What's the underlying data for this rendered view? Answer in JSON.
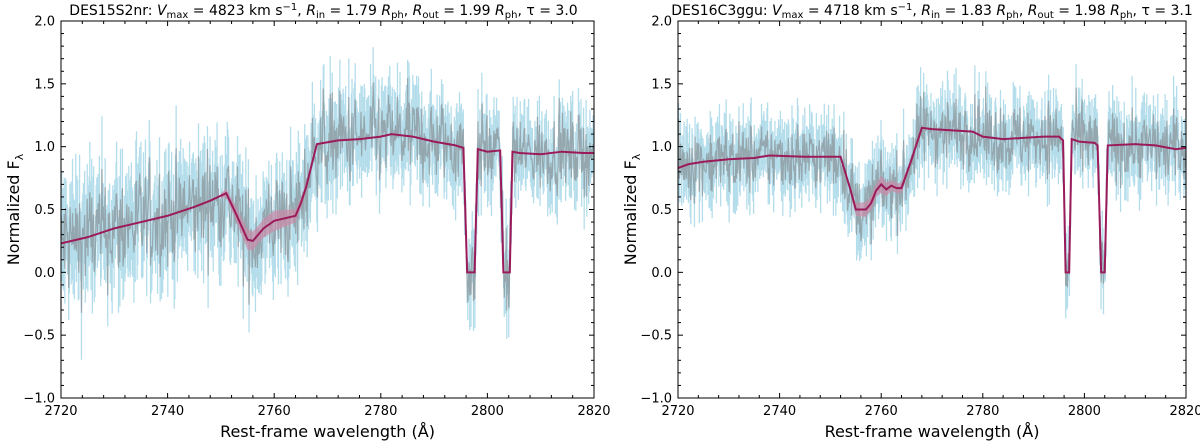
{
  "chart_data": [
    {
      "type": "line",
      "title": "DES15S2nr: V_max = 4823 km s^-1, R_in = 1.79 R_ph, R_out = 1.99 R_ph, τ = 3.0",
      "title_parts": {
        "name": "DES15S2nr",
        "vmax": "4823",
        "rin": "1.79",
        "rout": "1.99",
        "tau": "3.0"
      },
      "xlabel": "Rest-frame wavelength (Å)",
      "ylabel": "Normalized F_λ",
      "xlim": [
        2720,
        2820
      ],
      "ylim": [
        -1.0,
        2.0
      ],
      "xticks": [
        "2720",
        "2740",
        "2760",
        "2780",
        "2800",
        "2820"
      ],
      "yticks": [
        "−1.0",
        "−0.5",
        "0.0",
        "0.5",
        "1.0",
        "1.5",
        "2.0"
      ],
      "grid": false,
      "colors": {
        "model": "#9b1b5a",
        "band": "#c98aa6",
        "data": "#8f9ea3",
        "errors": "#a8d8e8"
      },
      "model": {
        "x": [
          2720,
          2725,
          2730,
          2735,
          2740,
          2745,
          2748,
          2751,
          2753,
          2755,
          2756,
          2757,
          2758,
          2760,
          2762,
          2764,
          2765,
          2766,
          2768,
          2772,
          2776,
          2780,
          2782,
          2786,
          2790,
          2794,
          2795.5,
          2796.2,
          2797.6,
          2798.2,
          2800,
          2802.4,
          2803.0,
          2804.2,
          2804.7,
          2806,
          2810,
          2814,
          2818,
          2820
        ],
        "y": [
          0.23,
          0.28,
          0.35,
          0.4,
          0.45,
          0.52,
          0.57,
          0.63,
          0.45,
          0.26,
          0.25,
          0.3,
          0.35,
          0.41,
          0.43,
          0.45,
          0.55,
          0.68,
          1.02,
          1.05,
          1.06,
          1.08,
          1.1,
          1.08,
          1.04,
          1.01,
          0.99,
          0.0,
          0.0,
          0.98,
          0.96,
          0.97,
          0.0,
          0.0,
          0.96,
          0.95,
          0.94,
          0.96,
          0.95,
          0.95
        ]
      },
      "band": {
        "x": [
          2750,
          2753,
          2755,
          2757,
          2760,
          2763,
          2765,
          2768
        ],
        "half_width": [
          0.02,
          0.06,
          0.08,
          0.07,
          0.08,
          0.06,
          0.04,
          0.02
        ]
      }
    },
    {
      "type": "line",
      "title": "DES16C3ggu: V_max = 4718 km s^-1, R_in = 1.83 R_ph, R_out = 1.98 R_ph, τ = 3.1",
      "title_parts": {
        "name": "DES16C3ggu",
        "vmax": "4718",
        "rin": "1.83",
        "rout": "1.98",
        "tau": "3.1"
      },
      "xlabel": "Rest-frame wavelength (Å)",
      "ylabel": "Normalized F_λ",
      "xlim": [
        2720,
        2820
      ],
      "ylim": [
        -1.0,
        2.0
      ],
      "xticks": [
        "2720",
        "2740",
        "2760",
        "2780",
        "2800",
        "2820"
      ],
      "yticks": [
        "−1.0",
        "−0.5",
        "0.0",
        "0.5",
        "1.0",
        "1.5",
        "2.0"
      ],
      "grid": false,
      "colors": {
        "model": "#9b1b5a",
        "band": "#c98aa6",
        "data": "#8f9ea3",
        "errors": "#a8d8e8"
      },
      "model": {
        "x": [
          2720,
          2722,
          2725,
          2730,
          2735,
          2738,
          2745,
          2752,
          2754,
          2755,
          2757,
          2758,
          2759,
          2760,
          2761,
          2762,
          2763,
          2764,
          2766,
          2768,
          2770,
          2774,
          2778,
          2780,
          2784,
          2788,
          2792,
          2795,
          2795.8,
          2796.3,
          2797.0,
          2797.5,
          2799,
          2802,
          2802.6,
          2803.3,
          2804.0,
          2804.6,
          2810,
          2814,
          2818,
          2820
        ],
        "y": [
          0.83,
          0.86,
          0.88,
          0.9,
          0.91,
          0.93,
          0.92,
          0.92,
          0.65,
          0.5,
          0.5,
          0.55,
          0.65,
          0.7,
          0.66,
          0.69,
          0.67,
          0.67,
          0.9,
          1.15,
          1.14,
          1.13,
          1.12,
          1.08,
          1.06,
          1.07,
          1.08,
          1.08,
          1.05,
          0.0,
          0.0,
          1.06,
          1.04,
          1.03,
          1.01,
          0.0,
          0.0,
          1.01,
          1.02,
          1.01,
          0.98,
          0.99
        ]
      },
      "band": {
        "x": [
          2754,
          2755,
          2757,
          2759,
          2760,
          2762,
          2764,
          2766
        ],
        "half_width": [
          0.03,
          0.05,
          0.06,
          0.05,
          0.07,
          0.04,
          0.04,
          0.02
        ]
      }
    }
  ]
}
